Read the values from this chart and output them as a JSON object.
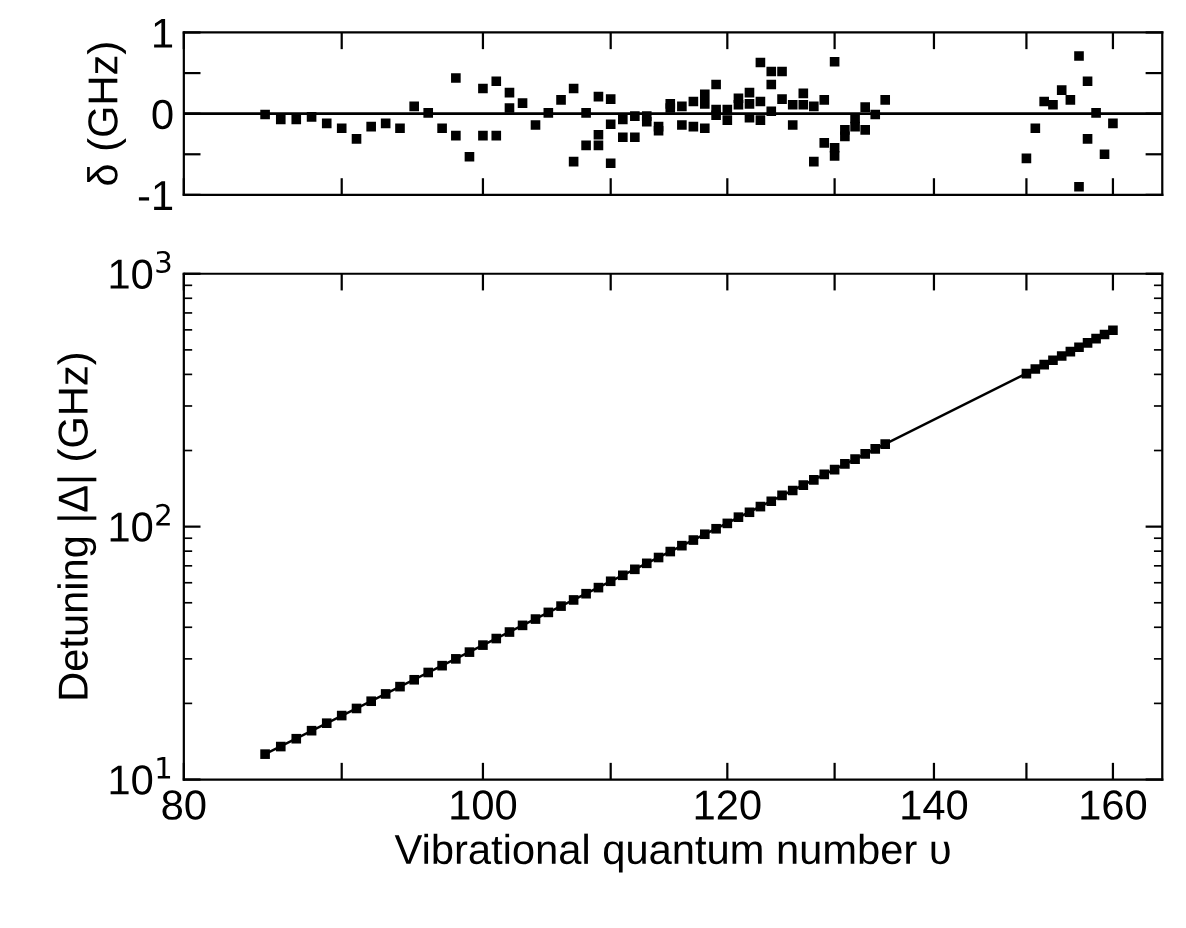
{
  "chart_data": [
    {
      "type": "scatter",
      "ylabel": "δ (GHz)",
      "marker": "square",
      "log": "x",
      "xlim": [
        80,
        166
      ],
      "ylim": [
        -1,
        1
      ],
      "yticks": [
        -1,
        {
          "value": -0.5,
          "label": null
        },
        0,
        {
          "value": 0.5,
          "label": null
        },
        1
      ],
      "xticks": [
        {
          "value": 80,
          "label": null
        },
        {
          "value": 90,
          "label": null
        },
        {
          "value": 100,
          "label": null
        },
        {
          "value": 110,
          "label": null
        },
        {
          "value": 120,
          "label": null
        },
        {
          "value": 130,
          "label": null
        },
        {
          "value": 140,
          "label": null
        },
        {
          "value": 150,
          "label": null
        },
        {
          "value": 160,
          "label": null
        }
      ],
      "tick_labels": "y",
      "grid": false,
      "ref_lines": [
        {
          "axis": "y",
          "value": 0,
          "color": "#000000"
        }
      ],
      "series": [
        {
          "color": "#000000",
          "x": [
            85,
            86,
            87,
            88,
            89,
            90,
            91,
            92,
            93,
            94,
            95,
            96,
            97,
            98,
            98,
            99,
            100,
            100,
            101,
            101,
            102,
            102,
            103,
            104,
            105,
            106,
            107,
            107,
            108,
            108,
            109,
            109,
            109,
            110,
            110,
            110,
            111,
            111,
            112,
            112,
            113,
            113,
            114,
            114,
            115,
            115,
            116,
            116,
            117,
            117,
            118,
            118,
            118,
            119,
            119,
            119,
            120,
            120,
            121,
            121,
            122,
            122,
            122,
            123,
            123,
            123,
            124,
            124,
            124,
            125,
            125,
            126,
            126,
            127,
            127,
            128,
            128,
            129,
            129,
            130,
            130,
            130,
            131,
            131,
            132,
            132,
            133,
            133,
            134,
            135,
            150,
            151,
            152,
            153,
            154,
            155,
            156,
            156,
            157,
            157,
            158,
            159,
            160
          ],
          "values": [
            -0.01,
            -0.07,
            -0.07,
            -0.04,
            -0.12,
            -0.18,
            -0.31,
            -0.16,
            -0.12,
            -0.18,
            0.09,
            0.01,
            -0.18,
            0.44,
            -0.27,
            -0.53,
            0.31,
            -0.27,
            0.4,
            -0.27,
            0.26,
            0.07,
            0.13,
            -0.14,
            0.01,
            0.17,
            0.31,
            -0.59,
            0.01,
            -0.39,
            0.21,
            -0.26,
            -0.39,
            0.18,
            -0.13,
            -0.61,
            -0.07,
            -0.29,
            -0.03,
            -0.29,
            -0.03,
            -0.1,
            -0.16,
            -0.21,
            0.12,
            0.07,
            0.09,
            -0.14,
            0.15,
            -0.16,
            0.24,
            0.12,
            -0.18,
            0.36,
            0.05,
            -0.02,
            0.05,
            -0.08,
            0.19,
            0.11,
            0.26,
            0.12,
            -0.05,
            0.63,
            0.15,
            -0.08,
            0.52,
            0.36,
            0.03,
            0.52,
            0.18,
            0.11,
            -0.14,
            0.25,
            0.11,
            0.09,
            -0.59,
            0.17,
            -0.36,
            0.64,
            -0.42,
            -0.52,
            -0.2,
            -0.28,
            -0.06,
            -0.16,
            0.08,
            -0.2,
            -0.01,
            0.17,
            -0.55,
            -0.18,
            0.15,
            0.11,
            0.29,
            0.17,
            0.71,
            -0.9,
            0.4,
            -0.31,
            0.01,
            -0.5,
            -0.12
          ]
        }
      ]
    },
    {
      "type": "scatter",
      "xlabel": "Vibrational quantum number υ",
      "ylabel": "Detuning |Δ| (GHz)",
      "marker": "square",
      "log": "xy",
      "xlim": [
        80,
        166
      ],
      "ylim": [
        10,
        1000
      ],
      "yticks": [
        {
          "value": 10,
          "label": "10$^{1}$"
        },
        {
          "value": 100,
          "label": "10$^{2}$"
        },
        {
          "value": 1000,
          "label": "10$^{3}$"
        }
      ],
      "xticks": [
        80,
        {
          "value": 90,
          "label": null
        },
        100,
        {
          "value": 110,
          "label": null
        },
        120,
        {
          "value": 130,
          "label": null
        },
        140,
        {
          "value": 150,
          "label": null
        },
        160
      ],
      "grid": false,
      "series": [
        {
          "type": "line",
          "color": "#000000",
          "marker": "none",
          "x": [
            85,
            160
          ],
          "values": [
            12.6,
            598
          ]
        },
        {
          "color": "#000000",
          "x": [
            85,
            86,
            87,
            88,
            89,
            90,
            91,
            92,
            93,
            94,
            95,
            96,
            97,
            98,
            99,
            100,
            101,
            102,
            103,
            104,
            105,
            106,
            107,
            108,
            109,
            110,
            111,
            112,
            113,
            114,
            115,
            116,
            117,
            118,
            119,
            120,
            121,
            122,
            123,
            124,
            125,
            126,
            127,
            128,
            129,
            130,
            131,
            132,
            133,
            134,
            135,
            150,
            151,
            152,
            153,
            154,
            155,
            156,
            157,
            158,
            159,
            160
          ],
          "values": [
            12.6,
            13.5,
            14.5,
            15.6,
            16.7,
            17.9,
            19.1,
            20.4,
            21.8,
            23.3,
            24.8,
            26.5,
            28.2,
            30.0,
            31.9,
            34.0,
            36.1,
            38.3,
            40.7,
            43.1,
            45.8,
            48.5,
            51.3,
            54.3,
            57.4,
            60.8,
            64.2,
            67.8,
            71.6,
            75.5,
            79.7,
            84.1,
            88.5,
            93.3,
            98.1,
            103,
            109,
            114,
            120,
            126,
            133,
            139,
            146,
            153,
            161,
            168,
            177,
            185,
            194,
            203,
            212,
            403,
            420,
            437,
            455,
            473,
            492,
            512,
            533,
            554,
            575,
            598
          ]
        }
      ]
    }
  ]
}
